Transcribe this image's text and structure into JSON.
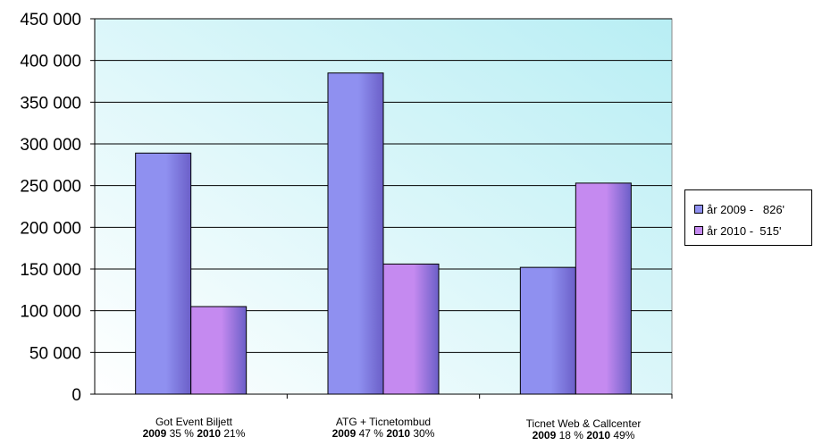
{
  "chart_data": {
    "type": "bar",
    "categories": [
      "Got Event Biljett",
      "ATG + Ticnetombud",
      "Ticnet Web & Callcenter"
    ],
    "category_notes": [
      {
        "y1": "2009",
        "p1": "35 %",
        "y2": "2010",
        "p2": "21%"
      },
      {
        "y1": "2009",
        "p1": "47 %",
        "y2": "2010",
        "p2": "30%"
      },
      {
        "y1": "2009",
        "p1": "18 %",
        "y2": "2010",
        "p2": "49%"
      }
    ],
    "series": [
      {
        "name": "år 2009 -   826'",
        "values": [
          289000,
          385000,
          152000
        ],
        "color": "#8f90f0"
      },
      {
        "name": "år 2010 -  515'",
        "values": [
          105000,
          156000,
          253000
        ],
        "color": "#c58af0"
      }
    ],
    "ylim": [
      0,
      450000
    ],
    "yticks": [
      "0",
      "50 000",
      "100 000",
      "150 000",
      "200 000",
      "250 000",
      "300 000",
      "350 000",
      "400 000",
      "450 000"
    ],
    "grid": true,
    "legend": "right",
    "plot_background": [
      "#b8eef4",
      "#ffffff"
    ]
  }
}
